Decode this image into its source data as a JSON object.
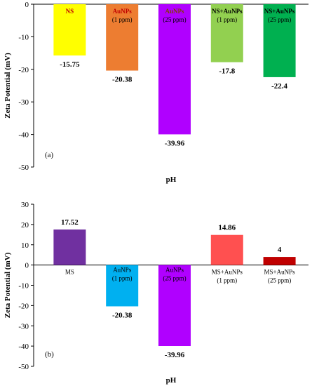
{
  "chart_data": [
    {
      "type": "bar",
      "panel_label": "(a)",
      "xlabel": "pH",
      "ylabel": "Zeta Potential (mV)",
      "ylim": [
        -50,
        0
      ],
      "yticks": [
        0,
        -10,
        -20,
        -30,
        -40,
        -50
      ],
      "grid": false,
      "category_label_position": "inside-bar-top",
      "categories": [
        {
          "line1": "NS",
          "line2": ""
        },
        {
          "line1": "AuNPs",
          "line2": "(1 ppm)"
        },
        {
          "line1": "AuNPs",
          "line2": "(25 ppm)"
        },
        {
          "line1": "NS+AuNPs",
          "line2": "(1 ppm)"
        },
        {
          "line1": "NS+AuNPs",
          "line2": "(25 ppm)"
        }
      ],
      "values": [
        -15.75,
        -20.38,
        -39.96,
        -17.8,
        -22.4
      ],
      "value_labels": [
        "-15.75",
        "-20.38",
        "-39.96",
        "-17.8",
        "-22.4"
      ],
      "colors": [
        "#ffff00",
        "#ed7d31",
        "#b000ff",
        "#92d050",
        "#00b050"
      ],
      "label_colors": [
        "#c00000",
        "#c00000",
        "#7f3f00",
        "#000000",
        "#000000"
      ]
    },
    {
      "type": "bar",
      "panel_label": "(b)",
      "xlabel": "pH",
      "ylabel": "Zeta Potential (mV)",
      "ylim": [
        -50,
        30
      ],
      "yticks": [
        30,
        20,
        10,
        0,
        -10,
        -20,
        -30,
        -40,
        -50
      ],
      "grid": false,
      "categories": [
        {
          "line1": "MS",
          "line2": ""
        },
        {
          "line1": "AuNPs",
          "line2": "(1 ppm)"
        },
        {
          "line1": "AuNPs",
          "line2": "(25 ppm)"
        },
        {
          "line1": "MS+AuNPs",
          "line2": "(1 ppm)"
        },
        {
          "line1": "MS+AuNPs",
          "line2": "(25 ppm)"
        }
      ],
      "values": [
        17.52,
        -20.38,
        -39.96,
        14.86,
        4
      ],
      "value_labels": [
        "17.52",
        "-20.38",
        "-39.96",
        "14.86",
        "4"
      ],
      "colors": [
        "#7030a0",
        "#00b0f0",
        "#b000ff",
        "#ff5050",
        "#c00000"
      ],
      "label_colors": [
        "#000000",
        "#7f3f00",
        "#7f3f00",
        "#000000",
        "#000000"
      ]
    }
  ]
}
